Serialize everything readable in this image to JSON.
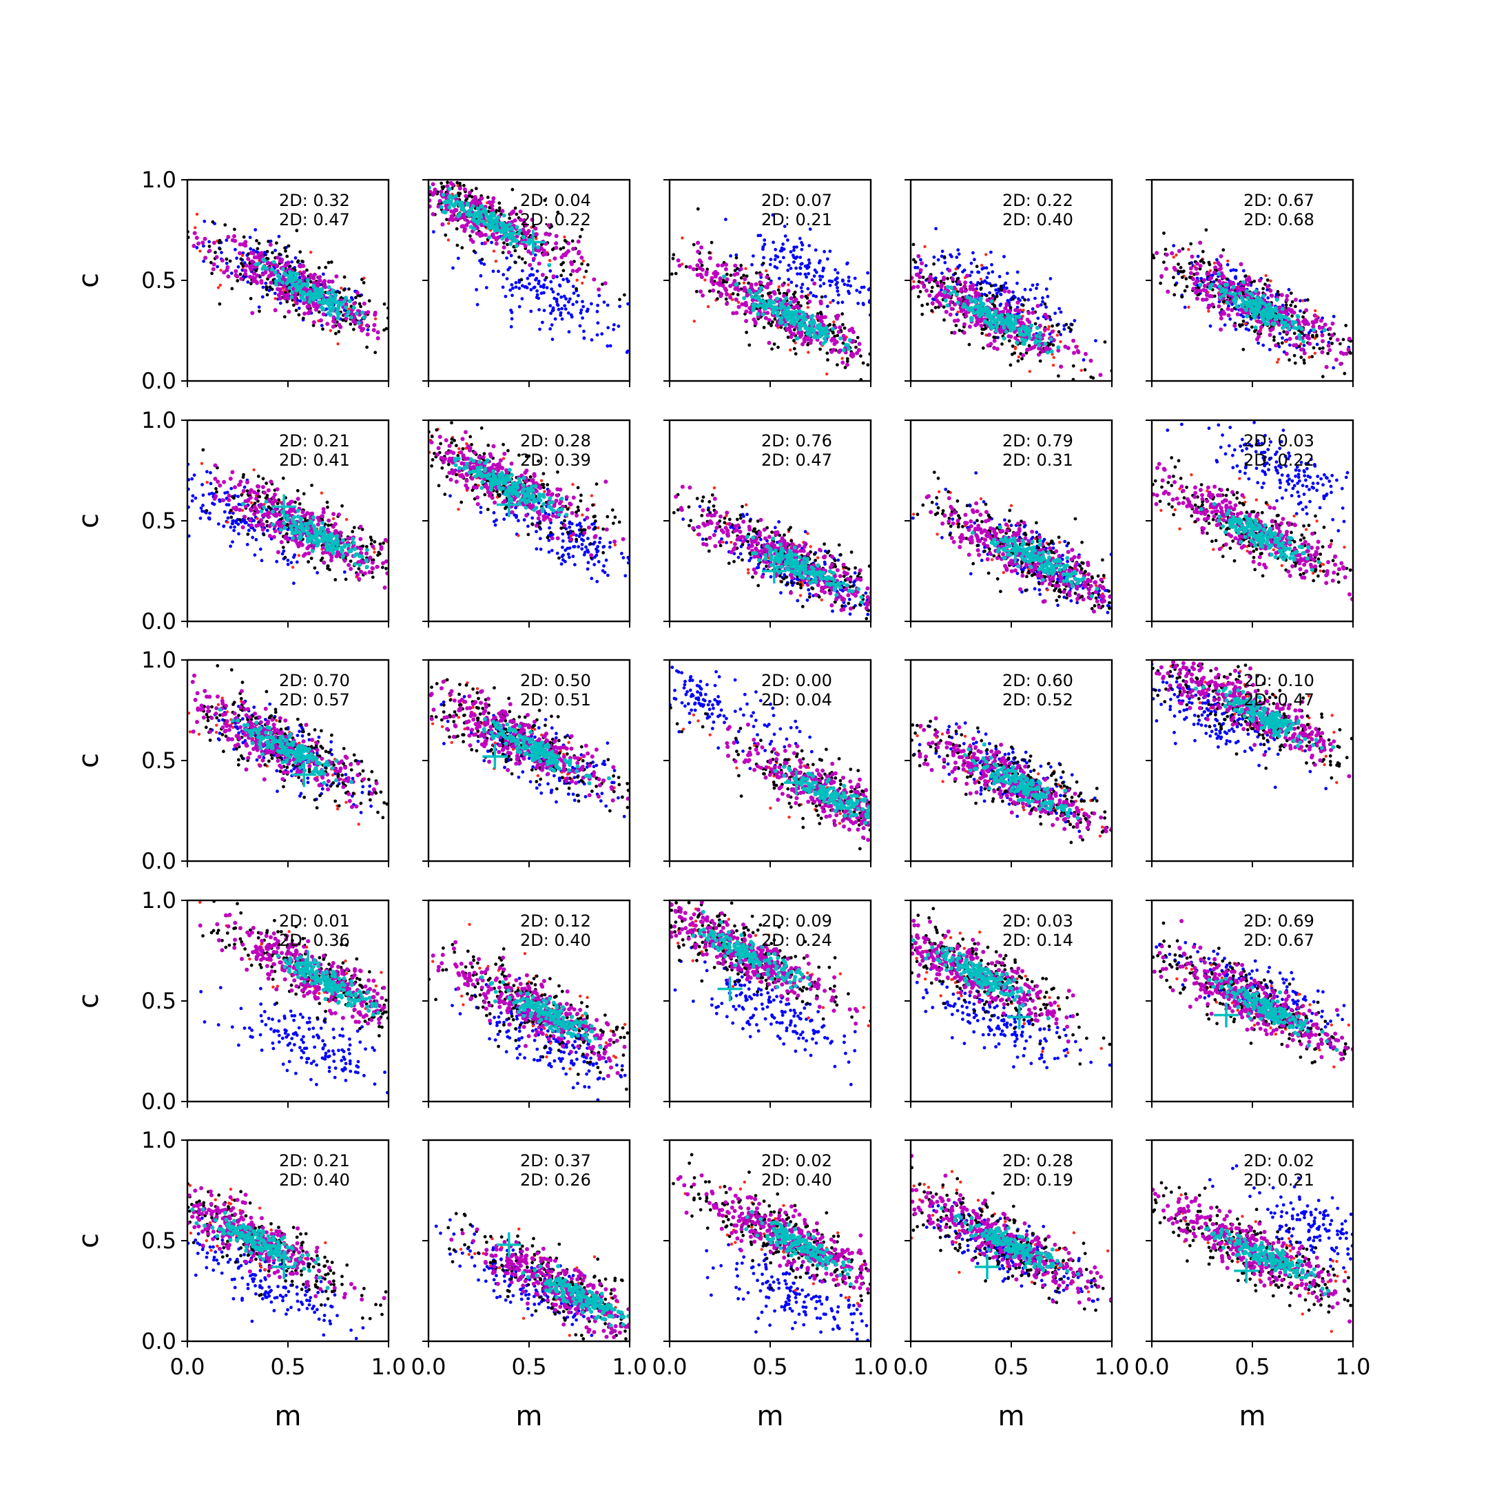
{
  "figure": {
    "xlabel": "m",
    "ylabel": "c"
  },
  "chart_data": {
    "type": "scatter",
    "layout": "5x5 grid",
    "xlim": [
      0,
      1
    ],
    "ylim": [
      0,
      1
    ],
    "xticks": [
      "0.0",
      "0.5",
      "1.0"
    ],
    "yticks": [
      "0.0",
      "0.5",
      "1.0"
    ],
    "grid": false,
    "colors": {
      "blue": "#0000ff",
      "red": "#ff2a1a",
      "black": "#000000",
      "magenta": "#bf00bf",
      "cyan": "#00bfbf"
    },
    "panels": [
      {
        "row": 1,
        "col": 1,
        "label1": "2D: 0.32",
        "label2": "2D: 0.47",
        "blue": {
          "cx": 0.5,
          "cy": 0.5
        },
        "main": {
          "cx": 0.55,
          "cy": 0.47
        },
        "marker": null
      },
      {
        "row": 1,
        "col": 2,
        "label1": "2D: 0.04",
        "label2": "2D: 0.22",
        "blue": {
          "cx": 0.6,
          "cy": 0.42
        },
        "main": {
          "cx": 0.25,
          "cy": 0.82
        },
        "marker": {
          "m": 0.52,
          "c": 0.69
        }
      },
      {
        "row": 1,
        "col": 3,
        "label1": "2D: 0.07",
        "label2": "2D: 0.21",
        "blue": {
          "cx": 0.72,
          "cy": 0.55
        },
        "main": {
          "cx": 0.55,
          "cy": 0.35
        },
        "marker": null
      },
      {
        "row": 1,
        "col": 4,
        "label1": "2D: 0.22",
        "label2": "2D: 0.40",
        "blue": {
          "cx": 0.45,
          "cy": 0.42
        },
        "main": {
          "cx": 0.38,
          "cy": 0.33
        },
        "marker": null
      },
      {
        "row": 1,
        "col": 5,
        "label1": "2D: 0.67",
        "label2": "2D: 0.68",
        "blue": {
          "cx": 0.5,
          "cy": 0.38
        },
        "main": {
          "cx": 0.5,
          "cy": 0.38
        },
        "marker": null
      },
      {
        "row": 2,
        "col": 1,
        "label1": "2D: 0.21",
        "label2": "2D: 0.41",
        "blue": {
          "cx": 0.25,
          "cy": 0.52
        },
        "main": {
          "cx": 0.6,
          "cy": 0.45
        },
        "marker": {
          "m": 0.48,
          "c": 0.57
        }
      },
      {
        "row": 2,
        "col": 2,
        "label1": "2D: 0.28",
        "label2": "2D: 0.39",
        "blue": {
          "cx": 0.65,
          "cy": 0.45
        },
        "main": {
          "cx": 0.35,
          "cy": 0.7
        },
        "marker": {
          "m": 0.4,
          "c": 0.58
        }
      },
      {
        "row": 2,
        "col": 3,
        "label1": "2D: 0.76",
        "label2": "2D: 0.47",
        "blue": {
          "cx": 0.62,
          "cy": 0.28
        },
        "main": {
          "cx": 0.6,
          "cy": 0.3
        },
        "marker": {
          "m": 0.52,
          "c": 0.25
        }
      },
      {
        "row": 2,
        "col": 4,
        "label1": "2D: 0.79",
        "label2": "2D: 0.31",
        "blue": {
          "cx": 0.6,
          "cy": 0.32
        },
        "main": {
          "cx": 0.6,
          "cy": 0.32
        },
        "marker": {
          "m": 0.52,
          "c": 0.35
        }
      },
      {
        "row": 2,
        "col": 5,
        "label1": "2D: 0.03",
        "label2": "2D: 0.22",
        "blue": {
          "cx": 0.65,
          "cy": 0.75
        },
        "main": {
          "cx": 0.5,
          "cy": 0.45
        },
        "marker": null
      },
      {
        "row": 3,
        "col": 1,
        "label1": "2D: 0.70",
        "label2": "2D: 0.57",
        "blue": {
          "cx": 0.5,
          "cy": 0.55
        },
        "main": {
          "cx": 0.45,
          "cy": 0.58
        },
        "marker": {
          "m": 0.58,
          "c": 0.43
        }
      },
      {
        "row": 3,
        "col": 2,
        "label1": "2D: 0.50",
        "label2": "2D: 0.51",
        "blue": {
          "cx": 0.55,
          "cy": 0.5
        },
        "main": {
          "cx": 0.45,
          "cy": 0.6
        },
        "marker": {
          "m": 0.33,
          "c": 0.52
        }
      },
      {
        "row": 3,
        "col": 3,
        "label1": "2D: 0.00",
        "label2": "2D: 0.04",
        "blue": {
          "cx": 0.2,
          "cy": 0.78
        },
        "main": {
          "cx": 0.8,
          "cy": 0.33
        },
        "marker": {
          "m": 0.63,
          "c": 0.39
        }
      },
      {
        "row": 3,
        "col": 4,
        "label1": "2D: 0.60",
        "label2": "2D: 0.52",
        "blue": {
          "cx": 0.5,
          "cy": 0.42
        },
        "main": {
          "cx": 0.5,
          "cy": 0.4
        },
        "marker": null
      },
      {
        "row": 3,
        "col": 5,
        "label1": "2D: 0.10",
        "label2": "2D: 0.47",
        "blue": {
          "cx": 0.25,
          "cy": 0.75
        },
        "main": {
          "cx": 0.5,
          "cy": 0.75
        },
        "marker": null
      },
      {
        "row": 4,
        "col": 1,
        "label1": "2D: 0.01",
        "label2": "2D: 0.36",
        "blue": {
          "cx": 0.62,
          "cy": 0.28
        },
        "main": {
          "cx": 0.65,
          "cy": 0.62
        },
        "marker": {
          "m": 0.6,
          "c": 0.69
        }
      },
      {
        "row": 4,
        "col": 2,
        "label1": "2D: 0.12",
        "label2": "2D: 0.40",
        "blue": {
          "cx": 0.6,
          "cy": 0.3
        },
        "main": {
          "cx": 0.55,
          "cy": 0.45
        },
        "marker": null
      },
      {
        "row": 4,
        "col": 3,
        "label1": "2D: 0.09",
        "label2": "2D: 0.24",
        "blue": {
          "cx": 0.5,
          "cy": 0.45
        },
        "main": {
          "cx": 0.35,
          "cy": 0.75
        },
        "marker": {
          "m": 0.3,
          "c": 0.56
        }
      },
      {
        "row": 4,
        "col": 4,
        "label1": "2D: 0.03",
        "label2": "2D: 0.14",
        "blue": {
          "cx": 0.42,
          "cy": 0.4
        },
        "main": {
          "cx": 0.3,
          "cy": 0.65
        },
        "marker": {
          "m": 0.54,
          "c": 0.42
        }
      },
      {
        "row": 4,
        "col": 5,
        "label1": "2D: 0.69",
        "label2": "2D: 0.67",
        "blue": {
          "cx": 0.5,
          "cy": 0.55
        },
        "main": {
          "cx": 0.5,
          "cy": 0.5
        },
        "marker": {
          "m": 0.37,
          "c": 0.43
        }
      },
      {
        "row": 5,
        "col": 1,
        "label1": "2D: 0.21",
        "label2": "2D: 0.40",
        "blue": {
          "cx": 0.4,
          "cy": 0.3
        },
        "main": {
          "cx": 0.3,
          "cy": 0.52
        },
        "marker": {
          "m": 0.48,
          "c": 0.37
        }
      },
      {
        "row": 5,
        "col": 2,
        "label1": "2D: 0.37",
        "label2": "2D: 0.26",
        "blue": {
          "cx": 0.5,
          "cy": 0.28
        },
        "main": {
          "cx": 0.7,
          "cy": 0.25
        },
        "marker": {
          "m": 0.4,
          "c": 0.48
        }
      },
      {
        "row": 5,
        "col": 3,
        "label1": "2D: 0.02",
        "label2": "2D: 0.40",
        "blue": {
          "cx": 0.6,
          "cy": 0.22
        },
        "main": {
          "cx": 0.6,
          "cy": 0.5
        },
        "marker": null
      },
      {
        "row": 5,
        "col": 4,
        "label1": "2D: 0.28",
        "label2": "2D: 0.19",
        "blue": {
          "cx": 0.5,
          "cy": 0.45
        },
        "main": {
          "cx": 0.45,
          "cy": 0.5
        },
        "marker": {
          "m": 0.38,
          "c": 0.37
        }
      },
      {
        "row": 5,
        "col": 5,
        "label1": "2D: 0.02",
        "label2": "2D: 0.21",
        "blue": {
          "cx": 0.85,
          "cy": 0.55
        },
        "main": {
          "cx": 0.5,
          "cy": 0.45
        },
        "marker": {
          "m": 0.47,
          "c": 0.35
        }
      }
    ]
  }
}
